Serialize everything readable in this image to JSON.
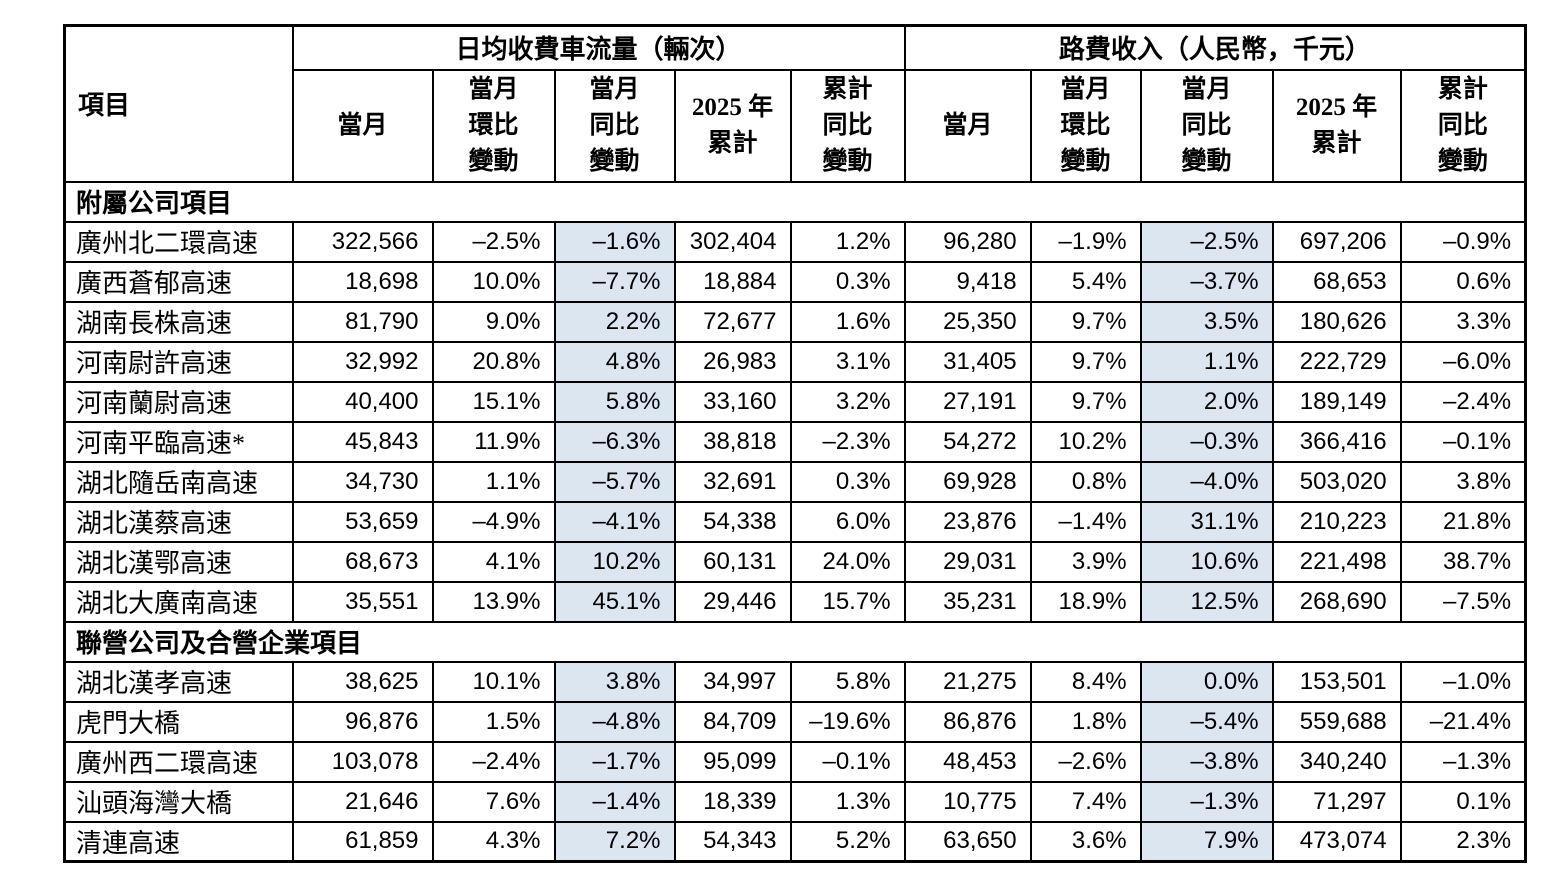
{
  "colors": {
    "highlight_column_background": "#dce6f1",
    "border": "#000000",
    "text": "#000000",
    "page_background": "#ffffff"
  },
  "table": {
    "item_header": "項目",
    "groups": [
      {
        "title": "日均收費車流量（輛次）",
        "subheaders": [
          "當月",
          "當月\n環比\n變動",
          "當月\n同比\n變動",
          "2025 年\n累計",
          "累計\n同比\n變動"
        ]
      },
      {
        "title": "路費收入（人民幣，千元）",
        "subheaders": [
          "當月",
          "當月\n環比\n變動",
          "當月\n同比\n變動",
          "2025 年\n累計",
          "累計\n同比\n變動"
        ]
      }
    ],
    "highlight_value_indices": [
      2,
      7
    ],
    "sections": [
      {
        "title": "附屬公司項目",
        "rows": [
          {
            "label": "廣州北二環高速",
            "values": [
              "322,566",
              "–2.5%",
              "–1.6%",
              "302,404",
              "1.2%",
              "96,280",
              "–1.9%",
              "–2.5%",
              "697,206",
              "–0.9%"
            ]
          },
          {
            "label": "廣西蒼郁高速",
            "values": [
              "18,698",
              "10.0%",
              "–7.7%",
              "18,884",
              "0.3%",
              "9,418",
              "5.4%",
              "–3.7%",
              "68,653",
              "0.6%"
            ]
          },
          {
            "label": "湖南長株高速",
            "values": [
              "81,790",
              "9.0%",
              "2.2%",
              "72,677",
              "1.6%",
              "25,350",
              "9.7%",
              "3.5%",
              "180,626",
              "3.3%"
            ]
          },
          {
            "label": "河南尉許高速",
            "values": [
              "32,992",
              "20.8%",
              "4.8%",
              "26,983",
              "3.1%",
              "31,405",
              "9.7%",
              "1.1%",
              "222,729",
              "–6.0%"
            ]
          },
          {
            "label": "河南蘭尉高速",
            "values": [
              "40,400",
              "15.1%",
              "5.8%",
              "33,160",
              "3.2%",
              "27,191",
              "9.7%",
              "2.0%",
              "189,149",
              "–2.4%"
            ]
          },
          {
            "label": "河南平臨高速*",
            "values": [
              "45,843",
              "11.9%",
              "–6.3%",
              "38,818",
              "–2.3%",
              "54,272",
              "10.2%",
              "–0.3%",
              "366,416",
              "–0.1%"
            ]
          },
          {
            "label": "湖北隨岳南高速",
            "values": [
              "34,730",
              "1.1%",
              "–5.7%",
              "32,691",
              "0.3%",
              "69,928",
              "0.8%",
              "–4.0%",
              "503,020",
              "3.8%"
            ]
          },
          {
            "label": "湖北漢蔡高速",
            "values": [
              "53,659",
              "–4.9%",
              "–4.1%",
              "54,338",
              "6.0%",
              "23,876",
              "–1.4%",
              "31.1%",
              "210,223",
              "21.8%"
            ]
          },
          {
            "label": "湖北漢鄂高速",
            "values": [
              "68,673",
              "4.1%",
              "10.2%",
              "60,131",
              "24.0%",
              "29,031",
              "3.9%",
              "10.6%",
              "221,498",
              "38.7%"
            ]
          },
          {
            "label": "湖北大廣南高速",
            "values": [
              "35,551",
              "13.9%",
              "45.1%",
              "29,446",
              "15.7%",
              "35,231",
              "18.9%",
              "12.5%",
              "268,690",
              "–7.5%"
            ]
          }
        ]
      },
      {
        "title": "聯營公司及合營企業項目",
        "rows": [
          {
            "label": "湖北漢孝高速",
            "values": [
              "38,625",
              "10.1%",
              "3.8%",
              "34,997",
              "5.8%",
              "21,275",
              "8.4%",
              "0.0%",
              "153,501",
              "–1.0%"
            ]
          },
          {
            "label": "虎門大橋",
            "values": [
              "96,876",
              "1.5%",
              "–4.8%",
              "84,709",
              "–19.6%",
              "86,876",
              "1.8%",
              "–5.4%",
              "559,688",
              "–21.4%"
            ]
          },
          {
            "label": "廣州西二環高速",
            "values": [
              "103,078",
              "–2.4%",
              "–1.7%",
              "95,099",
              "–0.1%",
              "48,453",
              "–2.6%",
              "–3.8%",
              "340,240",
              "–1.3%"
            ]
          },
          {
            "label": "汕頭海灣大橋",
            "values": [
              "21,646",
              "7.6%",
              "–1.4%",
              "18,339",
              "1.3%",
              "10,775",
              "7.4%",
              "–1.3%",
              "71,297",
              "0.1%"
            ]
          },
          {
            "label": "清連高速",
            "values": [
              "61,859",
              "4.3%",
              "7.2%",
              "54,343",
              "5.2%",
              "63,650",
              "3.6%",
              "7.9%",
              "473,074",
              "2.3%"
            ]
          }
        ]
      }
    ]
  }
}
